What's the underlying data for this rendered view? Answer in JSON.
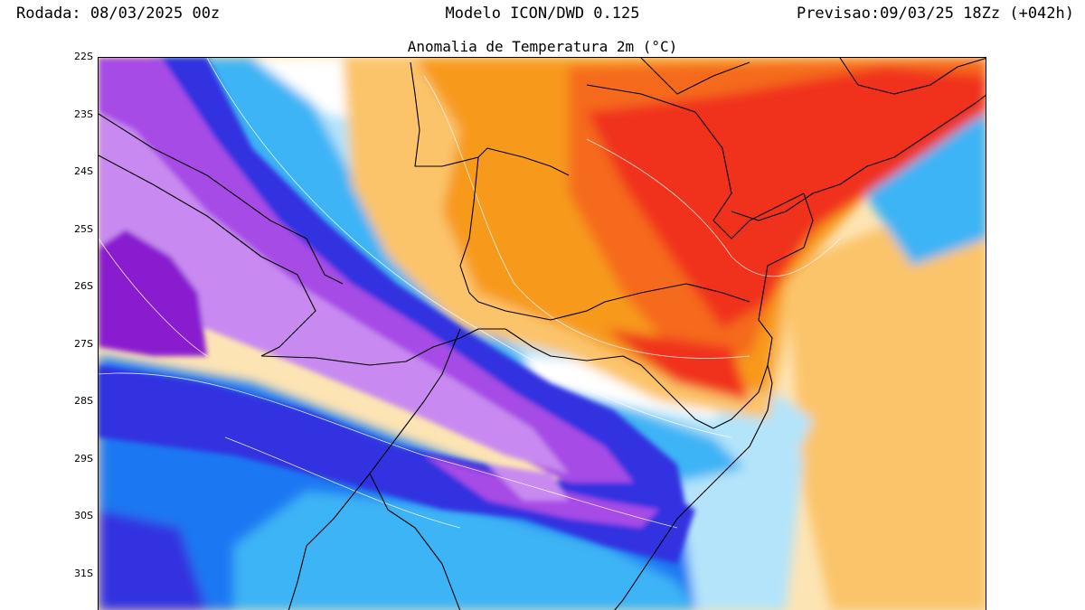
{
  "header": {
    "run": "Rodada: 08/03/2025 00z",
    "model": "Modelo ICON/DWD 0.125",
    "forecast": "Previsao:09/03/25 18Zz (+042h)"
  },
  "map": {
    "title": "Anomalia de Temperatura 2m (°C)",
    "latitude_labels": [
      "22S",
      "23S",
      "24S",
      "25S",
      "26S",
      "27S",
      "28S",
      "29S",
      "30S",
      "31S"
    ],
    "colors": {
      "deep_purple": "#8a1fd0",
      "purple": "#a64ce6",
      "light_purple": "#c88af0",
      "dark_blue": "#3232e0",
      "blue": "#1e78f2",
      "light_blue": "#3cb4f5",
      "pale_blue": "#b4e4fa",
      "orange": "#f79a1e",
      "light_orange": "#fbc46a",
      "pale_orange": "#fde4b4",
      "red": "#f0321e",
      "red_orange": "#f56a1e"
    }
  }
}
